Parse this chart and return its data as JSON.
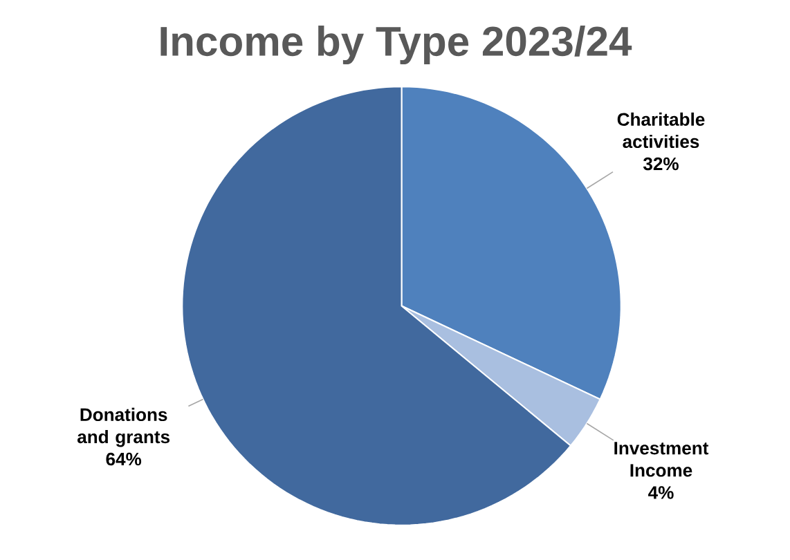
{
  "chart_data": {
    "type": "pie",
    "title": "Income by Type 2023/24",
    "categories": [
      "Charitable activities",
      "Investment Income",
      "Donations and grants"
    ],
    "values": [
      32,
      4,
      64
    ],
    "value_labels": [
      "32%",
      "4%",
      "64%"
    ],
    "colors": [
      "#4f81bd",
      "#a9bfe0",
      "#41699e"
    ]
  }
}
